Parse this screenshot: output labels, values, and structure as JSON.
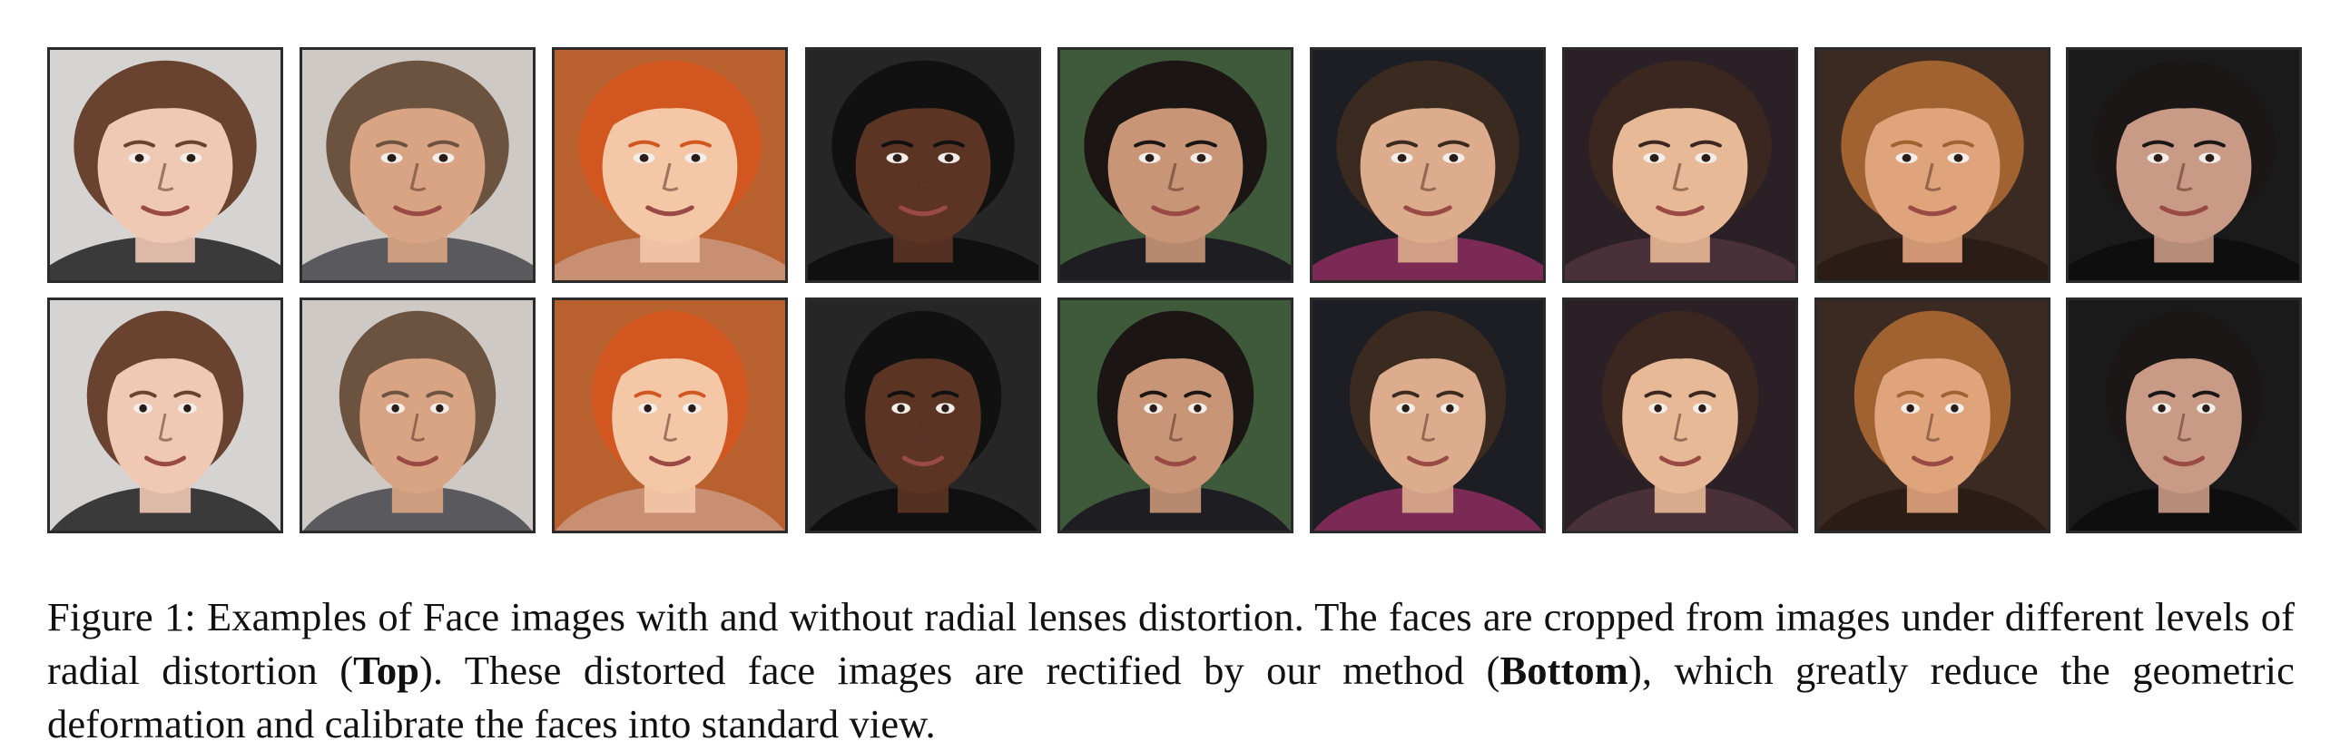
{
  "caption": {
    "label": "Figure 1:",
    "line1": "Examples of Face images with and without radial lenses distortion.  The faces are cropped from images under different levels of radial distortion (",
    "bold_top": "Top",
    "mid": ").  These distorted face images are rectified by our method (",
    "bold_bottom": "Bottom",
    "end": "), which greatly reduce the geometric deformation and calibrate the faces into standard view."
  },
  "rows": [
    "distorted",
    "rectified"
  ],
  "faces": [
    {
      "bg": "#d6d4d2",
      "skin": "#f0c9b4",
      "hair": "#6a4330",
      "shirt": "#3a3a3a"
    },
    {
      "bg": "#cfc9c6",
      "skin": "#d9a483",
      "hair": "#6b5340",
      "shirt": "#5a5a5e"
    },
    {
      "bg": "#b8612f",
      "skin": "#f4c7a7",
      "hair": "#d2561f",
      "shirt": "#c98f72"
    },
    {
      "bg": "#262626",
      "skin": "#5b3424",
      "hair": "#111111",
      "shirt": "#101010"
    },
    {
      "bg": "#3f5a3a",
      "skin": "#c89577",
      "hair": "#1b1513",
      "shirt": "#1e1e22"
    },
    {
      "bg": "#1d1d24",
      "skin": "#dcac8c",
      "hair": "#3a2a20",
      "shirt": "#7a2a55"
    },
    {
      "bg": "#2a2026",
      "skin": "#e7b996",
      "hair": "#3b2720",
      "shirt": "#4a3038"
    },
    {
      "bg": "#3a2a22",
      "skin": "#e0a47d",
      "hair": "#a06230",
      "shirt": "#2b1c16"
    },
    {
      "bg": "#1a1a1a",
      "skin": "#c99a86",
      "hair": "#1a1716",
      "shirt": "#0e0e0e"
    }
  ]
}
